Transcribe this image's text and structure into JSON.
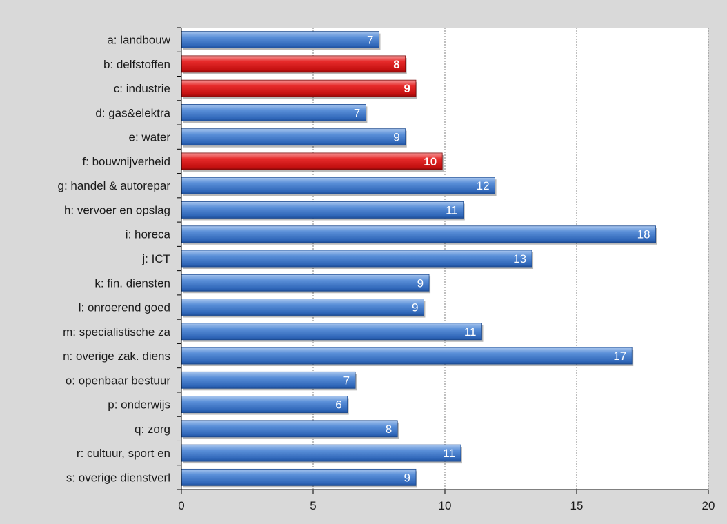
{
  "chart_data": {
    "type": "bar",
    "orientation": "horizontal",
    "title": "",
    "xlabel": "",
    "ylabel": "",
    "xlim": [
      0,
      20
    ],
    "xticks": [
      0,
      5,
      10,
      15,
      20
    ],
    "grid": "vertical dotted",
    "legend": "none",
    "categories": [
      "a: landbouw",
      "b: delfstoffen",
      "c: industrie",
      "d: gas&elektra",
      "e: water",
      "f: bouwnijverheid",
      "g: handel & autorepar",
      "h: vervoer en opslag",
      "i: horeca",
      "j: ICT",
      "k: fin. diensten",
      "l: onroerend goed",
      "m: specialistische za",
      "n: overige zak. diens",
      "o: openbaar bestuur",
      "p: onderwijs",
      "q: zorg",
      "r: cultuur, sport en",
      "s: overige dienstverl"
    ],
    "values": [
      7.5,
      8.5,
      8.9,
      7.0,
      8.5,
      9.9,
      11.9,
      10.7,
      18.0,
      13.3,
      9.4,
      9.2,
      11.4,
      17.1,
      6.6,
      6.3,
      8.2,
      10.6,
      8.9
    ],
    "value_labels": [
      "7",
      "8",
      "9",
      "7",
      "9",
      "10",
      "12",
      "11",
      "18",
      "13",
      "9",
      "9",
      "11",
      "17",
      "7",
      "6",
      "8",
      "11",
      "9"
    ],
    "highlighted": [
      1,
      2,
      5
    ],
    "colors": {
      "bar": "#4a7fcb",
      "bar_highlight": "#e21f1f",
      "background": "#d9d9d9",
      "plot_area": "#ffffff"
    }
  }
}
